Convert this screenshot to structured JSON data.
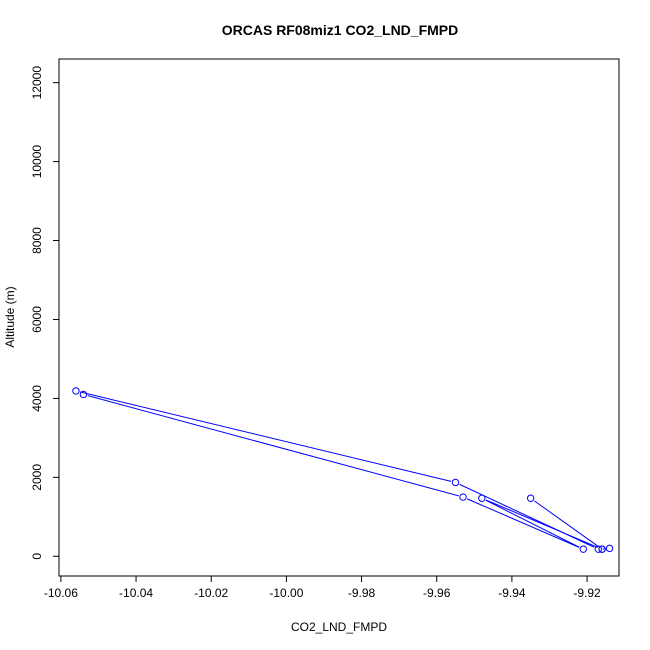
{
  "chart_data": {
    "type": "line",
    "title": "ORCAS RF08miz1 CO2_LND_FMPD",
    "xlabel": "CO2_LND_FMPD",
    "ylabel": "Altitude (m)",
    "xlim": [
      -10.0605,
      -9.9115
    ],
    "ylim": [
      -500,
      12600
    ],
    "x_ticks": [
      -10.06,
      -10.04,
      -10.02,
      -10.0,
      -9.98,
      -9.96,
      -9.94,
      -9.92
    ],
    "x_tick_labels": [
      "-10.06",
      "-10.04",
      "-10.02",
      "-10.00",
      "-9.98",
      "-9.96",
      "-9.94",
      "-9.92"
    ],
    "y_ticks": [
      0,
      2000,
      4000,
      6000,
      8000,
      10000,
      12000
    ],
    "y_tick_labels": [
      "0",
      "2000",
      "4000",
      "6000",
      "8000",
      "10000",
      "12000"
    ],
    "series_color": "#0000ff",
    "series": [
      {
        "x": [
          -9.935,
          -9.916,
          -9.948,
          -9.921,
          -9.953,
          -10.054,
          -10.056,
          -9.955,
          -9.917,
          -9.914,
          -9.916
        ],
        "y": [
          1470,
          180,
          1470,
          180,
          1500,
          4100,
          4190,
          1870,
          180,
          200,
          180
        ]
      }
    ]
  }
}
